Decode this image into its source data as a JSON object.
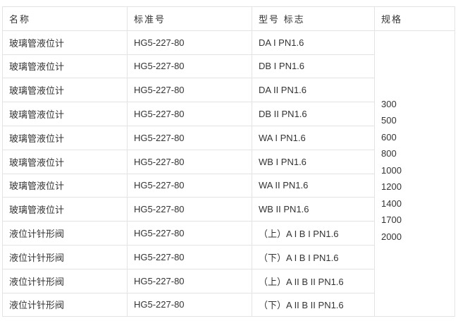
{
  "headers": [
    "名称",
    "标准号",
    "型号 标志",
    "规格"
  ],
  "rows": [
    [
      "玻璃管液位计",
      "HG5-227-80",
      "DA I PN1.6"
    ],
    [
      "玻璃管液位计",
      "HG5-227-80",
      "DB I PN1.6"
    ],
    [
      "玻璃管液位计",
      "HG5-227-80",
      "DA II PN1.6"
    ],
    [
      "玻璃管液位计",
      "HG5-227-80",
      "DB II PN1.6"
    ],
    [
      "玻璃管液位计",
      "HG5-227-80",
      "WA I PN1.6"
    ],
    [
      "玻璃管液位计",
      "HG5-227-80",
      "WB I PN1.6"
    ],
    [
      "玻璃管液位计",
      "HG5-227-80",
      "WA II PN1.6"
    ],
    [
      "玻璃管液位计",
      "HG5-227-80",
      "WB II PN1.6"
    ],
    [
      "液位计针形阀",
      "HG5-227-80",
      "（上）A I B I PN1.6"
    ],
    [
      "液位计针形阀",
      "HG5-227-80",
      "（下）A I B I PN1.6"
    ],
    [
      "液位计针形阀",
      "HG5-227-80",
      "（上）A II B II PN1.6"
    ],
    [
      "液位计针形阀",
      "HG5-227-80",
      "（下）A II B II PN1.6"
    ]
  ],
  "specs": [
    "300",
    "500",
    "600",
    "800",
    "1000",
    "1200",
    "1400",
    "1700",
    "2000"
  ]
}
